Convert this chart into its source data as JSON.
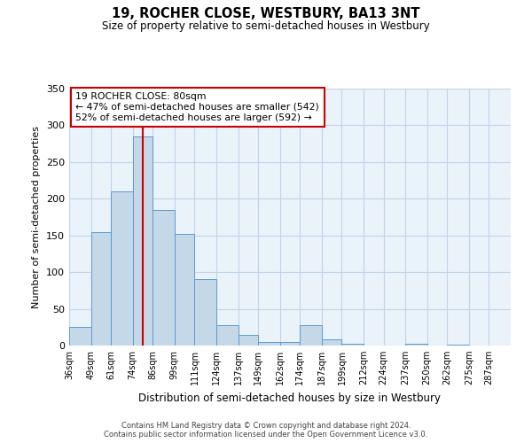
{
  "title": "19, ROCHER CLOSE, WESTBURY, BA13 3NT",
  "subtitle": "Size of property relative to semi-detached houses in Westbury",
  "xlabel": "Distribution of semi-detached houses by size in Westbury",
  "ylabel": "Number of semi-detached properties",
  "bin_labels": [
    "36sqm",
    "49sqm",
    "61sqm",
    "74sqm",
    "86sqm",
    "99sqm",
    "111sqm",
    "124sqm",
    "137sqm",
    "149sqm",
    "162sqm",
    "174sqm",
    "187sqm",
    "199sqm",
    "212sqm",
    "224sqm",
    "237sqm",
    "250sqm",
    "262sqm",
    "275sqm",
    "287sqm"
  ],
  "bin_edges": [
    36,
    49,
    61,
    74,
    86,
    99,
    111,
    124,
    137,
    149,
    162,
    174,
    187,
    199,
    212,
    224,
    237,
    250,
    262,
    275,
    287,
    300
  ],
  "bar_heights": [
    25,
    155,
    210,
    285,
    185,
    152,
    90,
    28,
    14,
    5,
    5,
    28,
    8,
    2,
    0,
    0,
    2,
    0,
    1,
    0,
    0
  ],
  "bar_color": "#c5d8e8",
  "bar_edge_color": "#5b9bd5",
  "property_value": 80,
  "marker_line_color": "#cc0000",
  "box_text_line1": "19 ROCHER CLOSE: 80sqm",
  "box_text_line2": "← 47% of semi-detached houses are smaller (542)",
  "box_text_line3": "52% of semi-detached houses are larger (592) →",
  "box_edge_color": "#cc0000",
  "ylim": [
    0,
    350
  ],
  "yticks": [
    0,
    50,
    100,
    150,
    200,
    250,
    300,
    350
  ],
  "footer_line1": "Contains HM Land Registry data © Crown copyright and database right 2024.",
  "footer_line2": "Contains public sector information licensed under the Open Government Licence v3.0.",
  "background_color": "#ffffff",
  "axes_bg_color": "#eaf2fa",
  "grid_color": "#c0d4e8"
}
